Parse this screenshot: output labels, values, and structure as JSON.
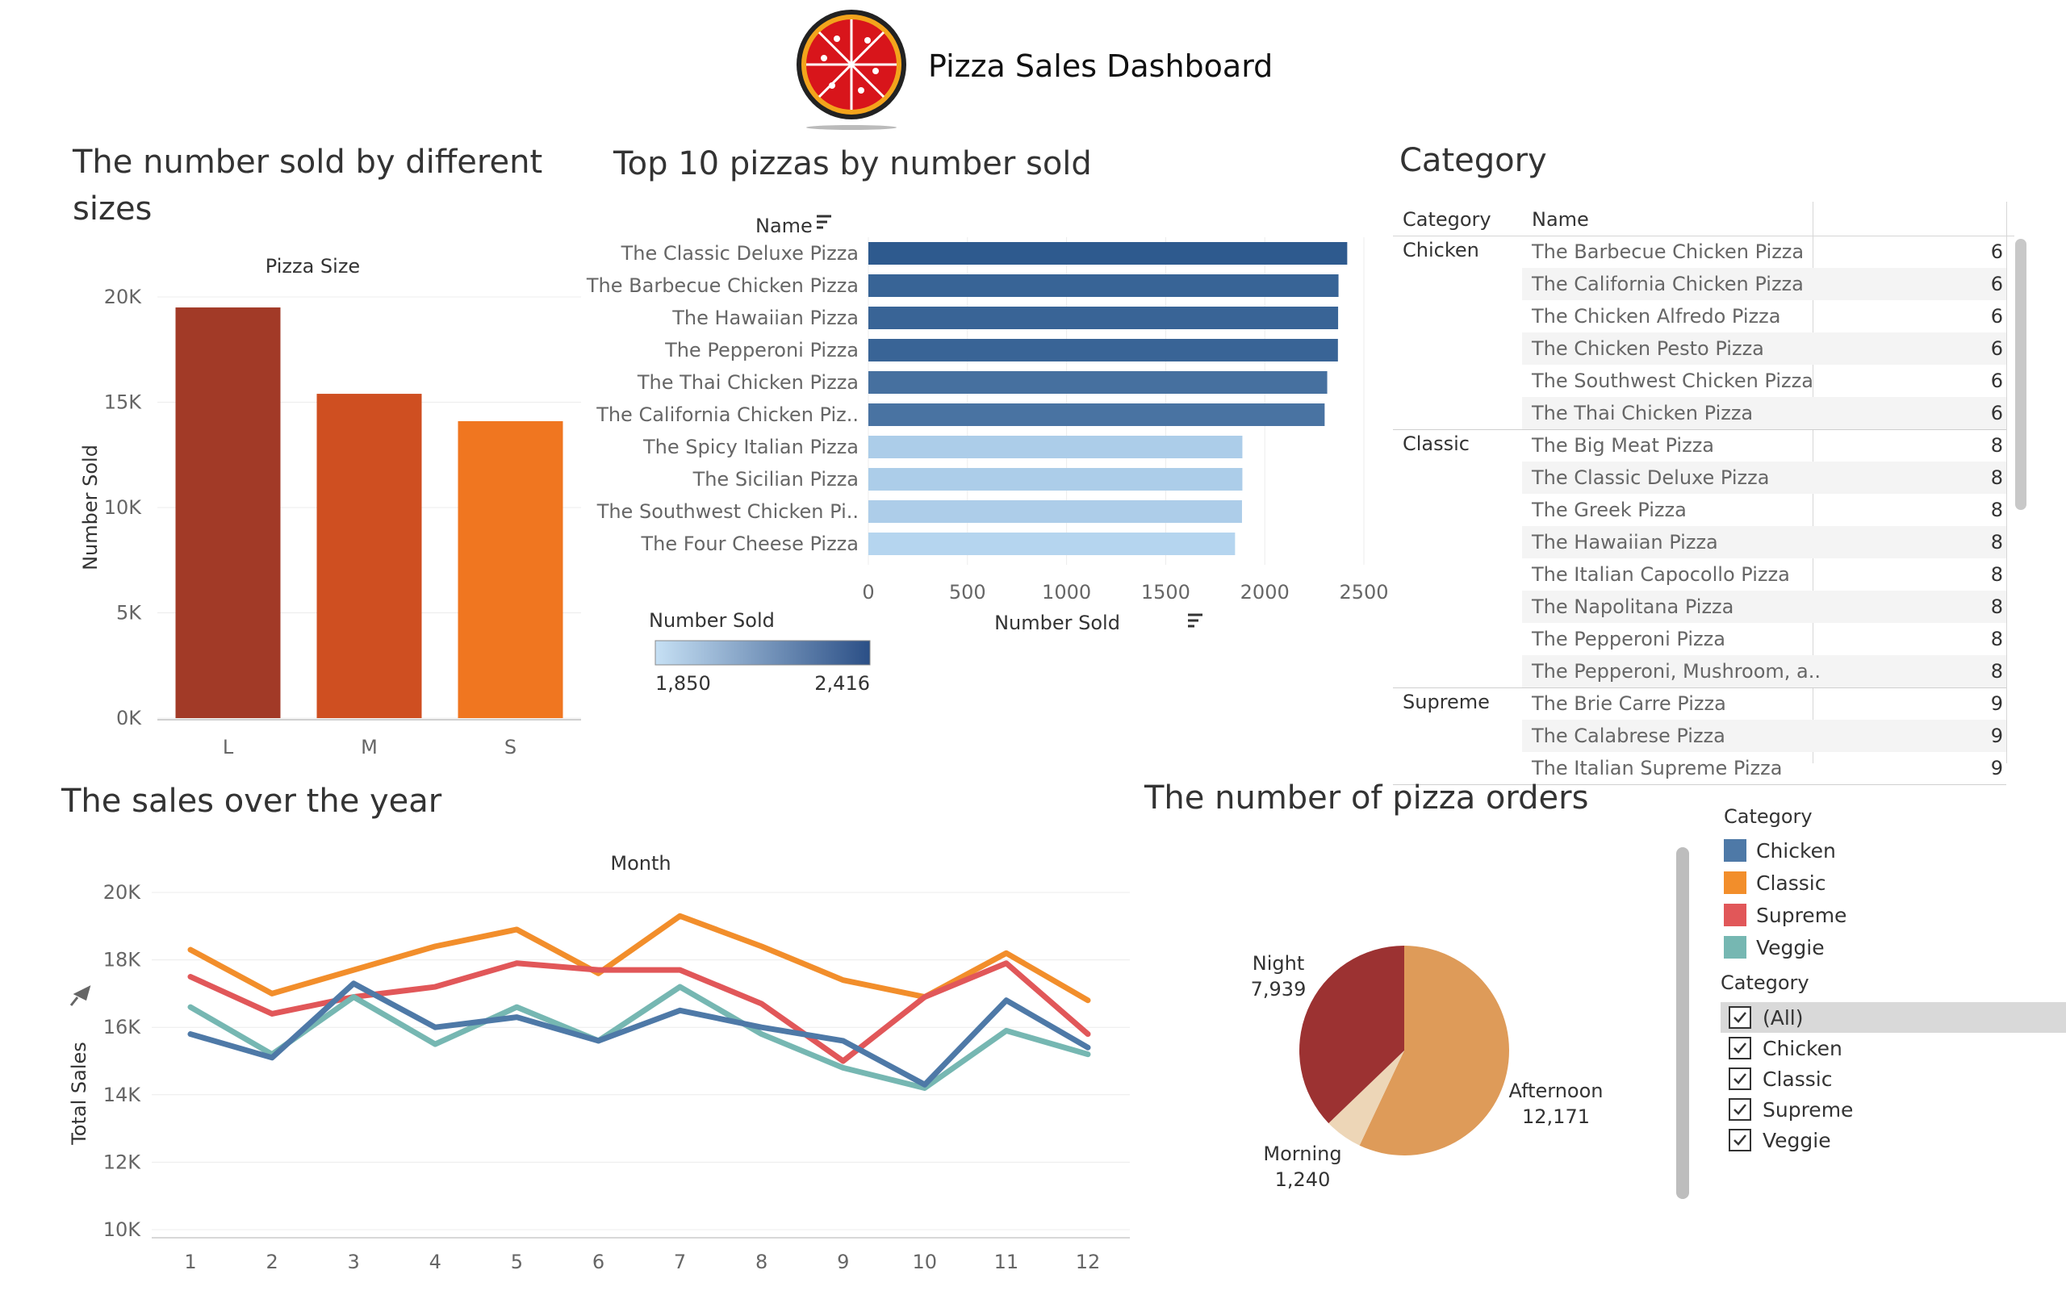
{
  "header": {
    "title": "Pizza Sales Dashboard"
  },
  "colors": {
    "chicken": "#4e79a7",
    "classic": "#f28e2b",
    "supreme": "#e15759",
    "veggie": "#76b7b2",
    "barDark": "#2e5a8e",
    "barLight": "#b5d5ef"
  },
  "sizes_panel": {
    "title": "The number sold by different sizes"
  },
  "top10_panel": {
    "title": "Top 10 pizzas by number sold"
  },
  "category_panel": {
    "title": "Category"
  },
  "sales_panel": {
    "title": "The sales over the year"
  },
  "orders_panel": {
    "title": "The number of pizza orders"
  },
  "legend": {
    "title": "Category",
    "items": [
      {
        "label": "Chicken",
        "color": "#4e79a7"
      },
      {
        "label": "Classic",
        "color": "#f28e2b"
      },
      {
        "label": "Supreme",
        "color": "#e15759"
      },
      {
        "label": "Veggie",
        "color": "#76b7b2"
      }
    ]
  },
  "filter": {
    "title": "Category",
    "options": [
      {
        "label": "(All)",
        "checked": true
      },
      {
        "label": "Chicken",
        "checked": true
      },
      {
        "label": "Classic",
        "checked": true
      },
      {
        "label": "Supreme",
        "checked": true
      },
      {
        "label": "Veggie",
        "checked": true
      }
    ]
  },
  "table": {
    "col_category": "Category",
    "col_name": "Name",
    "groups": [
      {
        "category": "Chicken",
        "rows": [
          {
            "name": "The Barbecue Chicken Pizza",
            "value": "6"
          },
          {
            "name": "The California Chicken Pizza",
            "value": "6"
          },
          {
            "name": "The Chicken Alfredo Pizza",
            "value": "6"
          },
          {
            "name": "The Chicken Pesto Pizza",
            "value": "6"
          },
          {
            "name": "The Southwest Chicken Pizza",
            "value": "6"
          },
          {
            "name": "The Thai Chicken Pizza",
            "value": "6"
          }
        ]
      },
      {
        "category": "Classic",
        "rows": [
          {
            "name": "The Big Meat Pizza",
            "value": "8"
          },
          {
            "name": "The Classic Deluxe Pizza",
            "value": "8"
          },
          {
            "name": "The Greek Pizza",
            "value": "8"
          },
          {
            "name": "The Hawaiian Pizza",
            "value": "8"
          },
          {
            "name": "The Italian Capocollo Pizza",
            "value": "8"
          },
          {
            "name": "The Napolitana Pizza",
            "value": "8"
          },
          {
            "name": "The Pepperoni Pizza",
            "value": "8"
          },
          {
            "name": "The Pepperoni, Mushroom, a..",
            "value": "8"
          }
        ]
      },
      {
        "category": "Supreme",
        "rows": [
          {
            "name": "The Brie Carre Pizza",
            "value": "9"
          },
          {
            "name": "The Calabrese Pizza",
            "value": "9"
          },
          {
            "name": "The Italian Supreme Pizza",
            "value": "9"
          }
        ]
      }
    ]
  },
  "chart_data": [
    {
      "type": "bar",
      "title": "The number sold by different sizes",
      "header": "Pizza Size",
      "ylabel": "Number Sold",
      "categories": [
        "L",
        "M",
        "S"
      ],
      "values": [
        19500,
        15400,
        14100
      ],
      "colors": [
        "#a23a27",
        "#cf4f21",
        "#f07620"
      ],
      "ylim": [
        0,
        20000
      ],
      "yticks": [
        "0K",
        "5K",
        "10K",
        "15K",
        "20K"
      ],
      "grid": true
    },
    {
      "type": "bar",
      "orientation": "horizontal",
      "title": "Top 10 pizzas by number sold",
      "yheader": "Name",
      "xlabel": "Number Sold",
      "categories": [
        "The Classic Deluxe Pizza",
        "The Barbecue Chicken Pizza",
        "The Hawaiian Pizza",
        "The Pepperoni Pizza",
        "The Thai Chicken Pizza",
        "The California Chicken Piz..",
        "The Spicy Italian Pizza",
        "The Sicilian Pizza",
        "The Southwest Chicken Pi..",
        "The Four Cheese Pizza"
      ],
      "values": [
        2416,
        2372,
        2370,
        2369,
        2315,
        2302,
        1887,
        1887,
        1885,
        1850
      ],
      "xlim": [
        0,
        2500
      ],
      "xticks": [
        "0",
        "500",
        "1000",
        "1500",
        "2000",
        "2500"
      ],
      "color_legend": {
        "title": "Number Sold",
        "min_label": "1,850",
        "max_label": "2,416"
      }
    },
    {
      "type": "line",
      "title": "The sales over the year",
      "header": "Month",
      "ylabel": "Total Sales",
      "x": [
        1,
        2,
        3,
        4,
        5,
        6,
        7,
        8,
        9,
        10,
        11,
        12
      ],
      "series": [
        {
          "name": "Classic",
          "color": "#f28e2b",
          "values": [
            18300,
            17000,
            17700,
            18400,
            18900,
            17600,
            19300,
            18400,
            17400,
            16900,
            18200,
            16800
          ]
        },
        {
          "name": "Supreme",
          "color": "#e15759",
          "values": [
            17500,
            16400,
            16900,
            17200,
            17900,
            17700,
            17700,
            16700,
            15000,
            16900,
            17900,
            15800
          ]
        },
        {
          "name": "Veggie",
          "color": "#76b7b2",
          "values": [
            16600,
            15200,
            16900,
            15500,
            16600,
            15600,
            17200,
            15800,
            14800,
            14200,
            15900,
            15200
          ]
        },
        {
          "name": "Chicken",
          "color": "#4e79a7",
          "values": [
            15800,
            15100,
            17300,
            16000,
            16300,
            15600,
            16500,
            16000,
            15600,
            14300,
            16800,
            15400
          ]
        }
      ],
      "ylim": [
        10000,
        20000
      ],
      "yticks": [
        "10K",
        "12K",
        "14K",
        "16K",
        "18K",
        "20K"
      ],
      "grid": true
    },
    {
      "type": "pie",
      "title": "The number of pizza orders",
      "slices": [
        {
          "label": "Afternoon",
          "value_label": "12,171",
          "value": 12171,
          "color": "#de9b59"
        },
        {
          "label": "Morning",
          "value_label": "1,240",
          "value": 1240,
          "color": "#edd6b7"
        },
        {
          "label": "Night",
          "value_label": "7,939",
          "value": 7939,
          "color": "#9c3232"
        }
      ]
    }
  ]
}
